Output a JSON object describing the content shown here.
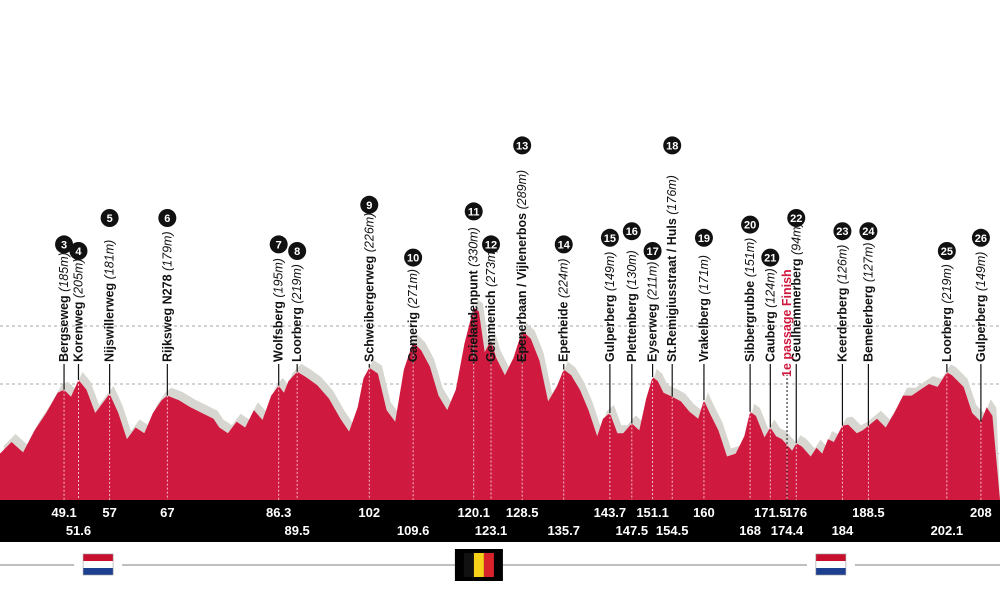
{
  "chart_data": {
    "type": "area",
    "x_unit": "km",
    "y_unit": "m",
    "x_range": [
      38,
      210
    ],
    "y_range": [
      0,
      400
    ],
    "profile": {
      "color": "#d0193f",
      "shadow_color": "#d8d6d0",
      "points": [
        [
          38,
          80
        ],
        [
          40,
          100
        ],
        [
          42,
          82
        ],
        [
          44,
          120
        ],
        [
          46,
          150
        ],
        [
          48,
          185
        ],
        [
          49.1,
          190
        ],
        [
          50.3,
          178
        ],
        [
          51.6,
          207
        ],
        [
          53,
          190
        ],
        [
          54.5,
          150
        ],
        [
          56,
          170
        ],
        [
          57,
          183
        ],
        [
          58.5,
          150
        ],
        [
          60,
          105
        ],
        [
          61.5,
          125
        ],
        [
          63,
          115
        ],
        [
          64.5,
          150
        ],
        [
          66,
          172
        ],
        [
          67,
          180
        ],
        [
          69,
          172
        ],
        [
          71,
          160
        ],
        [
          73,
          150
        ],
        [
          75,
          140
        ],
        [
          76,
          125
        ],
        [
          77.5,
          115
        ],
        [
          79,
          135
        ],
        [
          80.5,
          125
        ],
        [
          82,
          155
        ],
        [
          83.5,
          138
        ],
        [
          85,
          180
        ],
        [
          86.3,
          197
        ],
        [
          87.2,
          185
        ],
        [
          88,
          205
        ],
        [
          89.5,
          221
        ],
        [
          91,
          212
        ],
        [
          93,
          198
        ],
        [
          95,
          175
        ],
        [
          97,
          140
        ],
        [
          98.5,
          118
        ],
        [
          100,
          160
        ],
        [
          101,
          210
        ],
        [
          102,
          228
        ],
        [
          103.5,
          218
        ],
        [
          105,
          155
        ],
        [
          106.5,
          135
        ],
        [
          108,
          225
        ],
        [
          109.6,
          272
        ],
        [
          111,
          258
        ],
        [
          112.5,
          230
        ],
        [
          114,
          180
        ],
        [
          115.5,
          155
        ],
        [
          117,
          190
        ],
        [
          118.5,
          270
        ],
        [
          120.1,
          332
        ],
        [
          121,
          325
        ],
        [
          122,
          255
        ],
        [
          123.1,
          275
        ],
        [
          124,
          245
        ],
        [
          125.5,
          215
        ],
        [
          127,
          245
        ],
        [
          128.5,
          292
        ],
        [
          130,
          278
        ],
        [
          131.5,
          240
        ],
        [
          133,
          170
        ],
        [
          134.5,
          195
        ],
        [
          135.7,
          225
        ],
        [
          137,
          215
        ],
        [
          138.5,
          190
        ],
        [
          140,
          155
        ],
        [
          141.5,
          110
        ],
        [
          142.5,
          140
        ],
        [
          143.7,
          150
        ],
        [
          145,
          115
        ],
        [
          146,
          115
        ],
        [
          147.5,
          132
        ],
        [
          148.8,
          120
        ],
        [
          150,
          175
        ],
        [
          151.1,
          212
        ],
        [
          152,
          205
        ],
        [
          153,
          185
        ],
        [
          154.5,
          178
        ],
        [
          156,
          170
        ],
        [
          157.5,
          152
        ],
        [
          159,
          140
        ],
        [
          160,
          172
        ],
        [
          161,
          150
        ],
        [
          162.5,
          120
        ],
        [
          164,
          75
        ],
        [
          165.5,
          80
        ],
        [
          167,
          110
        ],
        [
          168,
          152
        ],
        [
          169,
          145
        ],
        [
          170.5,
          108
        ],
        [
          171.5,
          125
        ],
        [
          172.5,
          110
        ],
        [
          173.5,
          105
        ],
        [
          174.4,
          95
        ],
        [
          175.3,
          85
        ],
        [
          176,
          98
        ],
        [
          177,
          92
        ],
        [
          178.5,
          75
        ],
        [
          179.5,
          90
        ],
        [
          180.5,
          80
        ],
        [
          181.5,
          105
        ],
        [
          182.5,
          100
        ],
        [
          184,
          128
        ],
        [
          185,
          130
        ],
        [
          186.5,
          115
        ],
        [
          187.5,
          120
        ],
        [
          188.5,
          128
        ],
        [
          190,
          140
        ],
        [
          191.5,
          125
        ],
        [
          193,
          150
        ],
        [
          194.5,
          180
        ],
        [
          196,
          180
        ],
        [
          197.5,
          190
        ],
        [
          199,
          200
        ],
        [
          200.5,
          195
        ],
        [
          202.1,
          220
        ],
        [
          203,
          215
        ],
        [
          205,
          195
        ],
        [
          206.5,
          150
        ],
        [
          208,
          135
        ],
        [
          209,
          160
        ],
        [
          210,
          145
        ]
      ]
    },
    "gridlines_y": [
      80,
      200,
      300
    ],
    "km_markers": [
      {
        "km": 49.1,
        "label": "49.1",
        "row": 1
      },
      {
        "km": 51.6,
        "label": "51.6",
        "row": 2
      },
      {
        "km": 57,
        "label": "57",
        "row": 1
      },
      {
        "km": 67,
        "label": "67",
        "row": 1
      },
      {
        "km": 86.3,
        "label": "86.3",
        "row": 1
      },
      {
        "km": 89.5,
        "label": "89.5",
        "row": 2
      },
      {
        "km": 102,
        "label": "102",
        "row": 1
      },
      {
        "km": 109.6,
        "label": "109.6",
        "row": 2
      },
      {
        "km": 120.1,
        "label": "120.1",
        "row": 1
      },
      {
        "km": 123.1,
        "label": "123.1",
        "row": 2
      },
      {
        "km": 128.5,
        "label": "128.5",
        "row": 1
      },
      {
        "km": 135.7,
        "label": "135.7",
        "row": 2
      },
      {
        "km": 143.7,
        "label": "143.7",
        "row": 1
      },
      {
        "km": 147.5,
        "label": "147.5",
        "row": 2
      },
      {
        "km": 151.1,
        "label": "151.1",
        "row": 1
      },
      {
        "km": 154.5,
        "label": "154.5",
        "row": 2
      },
      {
        "km": 160,
        "label": "160",
        "row": 1
      },
      {
        "km": 168,
        "label": "168",
        "row": 2
      },
      {
        "km": 171.5,
        "label": "171.5",
        "row": 1
      },
      {
        "km": 174.4,
        "label": "174.4",
        "row": 2
      },
      {
        "km": 176,
        "label": "176",
        "row": 1
      },
      {
        "km": 184,
        "label": "184",
        "row": 2
      },
      {
        "km": 188.5,
        "label": "188.5",
        "row": 1
      },
      {
        "km": 202.1,
        "label": "202.1",
        "row": 2
      },
      {
        "km": 208,
        "label": "208",
        "row": 1
      }
    ],
    "climbs": [
      {
        "n": "3",
        "name": "Bergseweg",
        "height": "185m",
        "km": 49.1
      },
      {
        "n": "4",
        "name": "Korenweg",
        "height": "205m",
        "km": 51.6
      },
      {
        "n": "5",
        "name": "Nijswillerweg",
        "height": "181m",
        "km": 57
      },
      {
        "n": "6",
        "name": "Rijksweg N278",
        "height": "179m",
        "km": 67
      },
      {
        "n": "7",
        "name": "Wolfsberg",
        "height": "195m",
        "km": 86.3
      },
      {
        "n": "8",
        "name": "Loorberg",
        "height": "219m",
        "km": 89.5
      },
      {
        "n": "9",
        "name": "Schweibergerweg",
        "height": "226m",
        "km": 102
      },
      {
        "n": "10",
        "name": "Camerig",
        "height": "271m",
        "km": 109.6
      },
      {
        "n": "11",
        "name": "Drielandenpunt",
        "height": "330m",
        "km": 120.1
      },
      {
        "n": "12",
        "name": "Gemmenich",
        "height": "273m",
        "km": 123.1
      },
      {
        "n": "13",
        "name": "Epenerbaan / Vijlenerbos",
        "height": "289m",
        "km": 128.5
      },
      {
        "n": "14",
        "name": "Eperheide",
        "height": "224m",
        "km": 135.7
      },
      {
        "n": "15",
        "name": "Gulperberg",
        "height": "149m",
        "km": 143.7
      },
      {
        "n": "16",
        "name": "Plettenberg",
        "height": "130m",
        "km": 147.5
      },
      {
        "n": "17",
        "name": "Eyserweg",
        "height": "211m",
        "km": 151.1
      },
      {
        "n": "18",
        "name": "St.Remigiusstraat / Huls",
        "height": "176m",
        "km": 154.5
      },
      {
        "n": "19",
        "name": "Vrakelberg",
        "height": "171m",
        "km": 160
      },
      {
        "n": "20",
        "name": "Sibbergrubbe",
        "height": "151m",
        "km": 168
      },
      {
        "n": "21",
        "name": "Cauberg",
        "height": "124m",
        "km": 171.5
      },
      {
        "n": "22",
        "name": "Geulhemmerberg",
        "height": "94m",
        "km": 176
      },
      {
        "n": "23",
        "name": "Keerderberg",
        "height": "126m",
        "km": 184
      },
      {
        "n": "24",
        "name": "Bemelerberg",
        "height": "127m",
        "km": 188.5
      },
      {
        "n": "25",
        "name": "Loorberg",
        "height": "219m",
        "km": 202.1
      },
      {
        "n": "26",
        "name": "Gulperberg",
        "height": "149m",
        "km": 208
      }
    ],
    "annotations": [
      {
        "text": "1e passage Finish",
        "km": 174.4,
        "color": "#d0193f"
      }
    ],
    "country_flags": [
      {
        "country": "Netherlands",
        "km": 55
      },
      {
        "country": "Belgium",
        "km": 121
      },
      {
        "country": "Netherlands",
        "km": 182
      }
    ]
  }
}
